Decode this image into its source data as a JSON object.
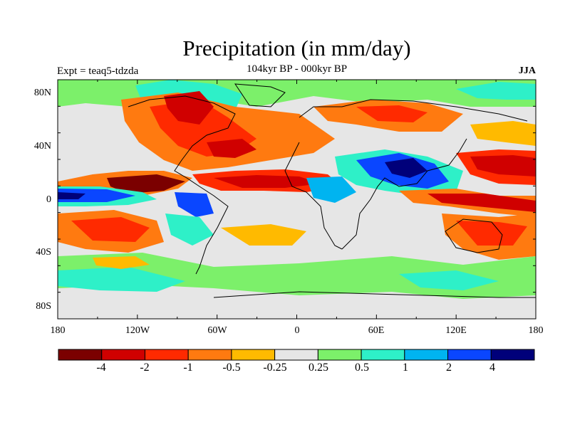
{
  "title": "Precipitation (in mm/day)",
  "subtitle": "104kyr BP - 000kyr BP",
  "experiment": "Expt = teaq5-tdzda",
  "season": "JJA",
  "lat_labels": [
    "80N",
    "40N",
    "0",
    "40S",
    "80S"
  ],
  "lon_labels": [
    "180",
    "120W",
    "60W",
    "0",
    "60E",
    "120E",
    "180"
  ],
  "colorbar": {
    "colors": [
      "#7b0000",
      "#d00000",
      "#ff2a00",
      "#ff7a10",
      "#ffba00",
      "#e6e6e6",
      "#7cf06a",
      "#2ef0c8",
      "#00b4f0",
      "#0a46ff",
      "#00007a"
    ],
    "labels": [
      "-4",
      "-2",
      "-1",
      "-0.5",
      "-0.25",
      "0.25",
      "0.5",
      "1",
      "2",
      "4"
    ]
  }
}
